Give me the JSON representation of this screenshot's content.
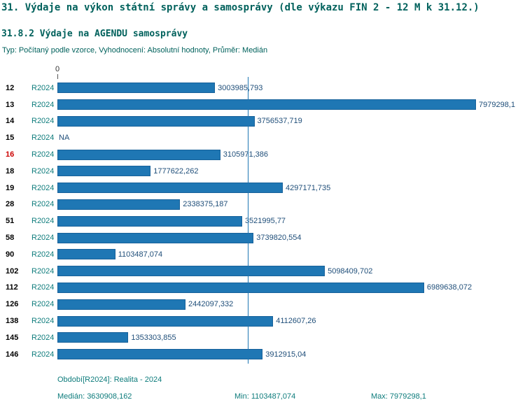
{
  "title": "31. Výdaje na výkon státní správy a samosprávy (dle výkazu FIN 2 - 12 M k 31.12.)",
  "subtitle": "31.8.2 Výdaje na AGENDU samosprávy",
  "meta": "Typ: Počítaný podle vzorce, Vyhodnocení: Absolutní hodnoty, Průměr: Medián",
  "chart_data": {
    "type": "bar",
    "orientation": "horizontal",
    "axis_zero_label": "0",
    "period_label": "R2024",
    "categories": [
      "12",
      "13",
      "14",
      "15",
      "16",
      "18",
      "19",
      "28",
      "51",
      "58",
      "90",
      "102",
      "112",
      "126",
      "138",
      "145",
      "146"
    ],
    "values": [
      3003985.793,
      7979298.1,
      3756537.719,
      null,
      3105971.386,
      1777622.262,
      4297171.735,
      2338375.187,
      3521995.77,
      3739820.554,
      1103487.074,
      5098409.702,
      6989638.072,
      2442097.332,
      4112607.26,
      1353303.855,
      3912915.04
    ],
    "value_labels": [
      "3003985,793",
      "7979298,1",
      "3756537,719",
      "NA",
      "3105971,386",
      "1777622,262",
      "4297171,735",
      "2338375,187",
      "3521995,77",
      "3739820,554",
      "1103487,074",
      "5098409,702",
      "6989638,072",
      "2442097,332",
      "4112607,26",
      "1353303,855",
      "3912915,04"
    ],
    "highlighted_category": "16",
    "median": 3630908.162,
    "xlim": [
      0,
      7979298.1
    ],
    "grid": false,
    "legend_position": "none",
    "bar_color": "#1f77b4",
    "median_line_color": "#1f77b4"
  },
  "footer": {
    "period": "Období[R2024]: Realita - 2024",
    "median": "Medián: 3630908,162",
    "min": "Min: 1103487,074",
    "max": "Max: 7979298,1"
  },
  "colors": {
    "heading": "#00615c",
    "period_label": "#0e7c7c",
    "value_label": "#1f4e79",
    "highlight": "#cc0000",
    "bar": "#1f77b4"
  }
}
